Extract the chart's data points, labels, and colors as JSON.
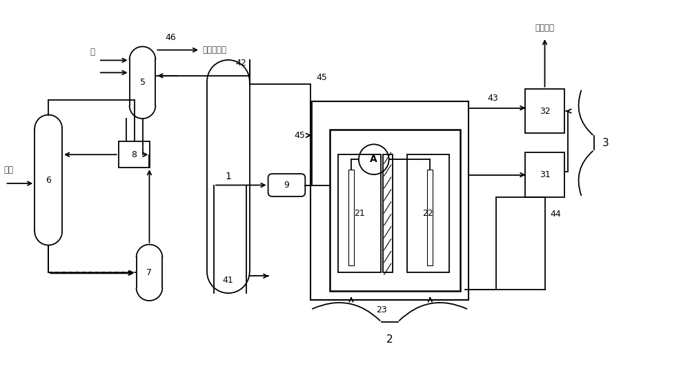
{
  "bg_color": "#ffffff",
  "line_color": "#000000",
  "lw": 1.3,
  "fig_width": 10.0,
  "fig_height": 5.41,
  "notes": {
    "smoke_label": "烟气",
    "water_label": "水",
    "gas_label": "待排放气体",
    "co2_label": "二氧化碳"
  }
}
